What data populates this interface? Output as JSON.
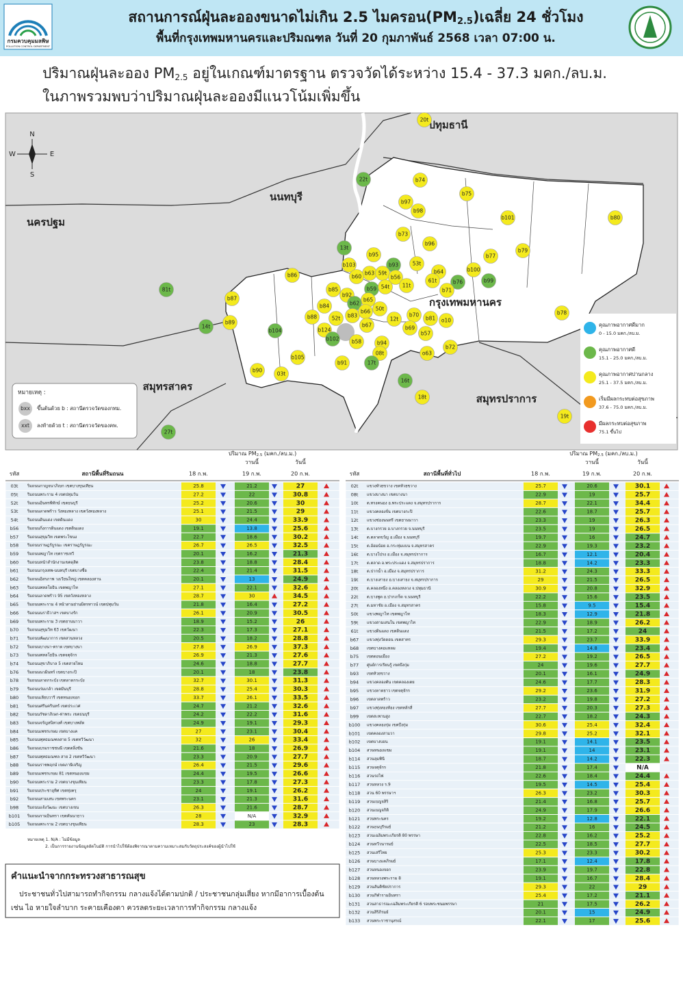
{
  "header": {
    "logo_name": "กรมควบคุมมลพิษ",
    "logo_sub": "POLLUTION CONTROL DEPARTMENT",
    "title_a": "สถานการณ์ฝุ่นละอองขนาดไม่เกิน 2.5 ไมครอน(PM",
    "title_sub": "2.5",
    "title_b": ")เฉลี่ย 24 ชั่วโมง",
    "subtitle": "พื้นที่กรุงเทพมหานครและปริมณฑล วันที่ 20 กุมภาพันธ์ 2568 เวลา 07:00 น."
  },
  "summary": {
    "line1_a": "ปริมาณฝุ่นละออง PM",
    "line1_sub": "2.5",
    "line1_b": " อยู่ในเกณฑ์มาตรฐาน ตรวจวัดได้ระหว่าง 15.4 - 37.3 มคก./ลบ.ม.",
    "line2": "ในภาพรวมพบว่าปริมาณฝุ่นละอองมีแนวโน้มเพิ่มขึ้น"
  },
  "map": {
    "compass": [
      "N",
      "E",
      "S",
      "W"
    ],
    "provinces": [
      "ปทุมธานี",
      "นนทบุรี",
      "นครปฐม",
      "กรุงเทพมหานคร",
      "สมุทรสาคร",
      "สมุทรปราการ"
    ],
    "stations": [
      {
        "label": "20t",
        "level": 2
      },
      {
        "label": "22t",
        "level": 1
      },
      {
        "label": "b74",
        "level": 2
      },
      {
        "label": "b75",
        "level": 2
      },
      {
        "label": "b97",
        "level": 2
      },
      {
        "label": "b98",
        "level": 2
      },
      {
        "label": "b101",
        "level": 2
      },
      {
        "label": "b80",
        "level": 2
      },
      {
        "label": "b73",
        "level": 2
      },
      {
        "label": "13t",
        "level": 1
      },
      {
        "label": "b96",
        "level": 2
      },
      {
        "label": "b95",
        "level": 2
      },
      {
        "label": "b77",
        "level": 2
      },
      {
        "label": "b79",
        "level": 2
      },
      {
        "label": "b93",
        "level": 1
      },
      {
        "label": "53t",
        "level": 2
      },
      {
        "label": "b103",
        "level": 2
      },
      {
        "label": "b100",
        "level": 2
      },
      {
        "label": "b63",
        "level": 2
      },
      {
        "label": "59t",
        "level": 2
      },
      {
        "label": "b56",
        "level": 2
      },
      {
        "label": "b64",
        "level": 2
      },
      {
        "label": "b86",
        "level": 2
      },
      {
        "label": "b60",
        "level": 2
      },
      {
        "label": "61t",
        "level": 2
      },
      {
        "label": "b76",
        "level": 1
      },
      {
        "label": "b99",
        "level": 1
      },
      {
        "label": "b85",
        "level": 2
      },
      {
        "label": "b59",
        "level": 1
      },
      {
        "label": "54t",
        "level": 2
      },
      {
        "label": "11t",
        "level": 2
      },
      {
        "label": "b71",
        "level": 2
      },
      {
        "label": "81t",
        "level": 1
      },
      {
        "label": "b92",
        "level": 2
      },
      {
        "label": "b87",
        "level": 2
      },
      {
        "label": "b65",
        "level": 2
      },
      {
        "label": "b62",
        "level": 1
      },
      {
        "label": "b84",
        "level": 2
      },
      {
        "label": "50t",
        "level": 2
      },
      {
        "label": "b89",
        "level": 2
      },
      {
        "label": "b83",
        "level": 2
      },
      {
        "label": "b88",
        "level": 2
      },
      {
        "label": "52t",
        "level": 2
      },
      {
        "label": "b70",
        "level": 2
      },
      {
        "label": "12t",
        "level": 2
      },
      {
        "label": "b81",
        "level": 2
      },
      {
        "label": "o10",
        "level": 2
      },
      {
        "label": "b78",
        "level": 2
      },
      {
        "label": "b66",
        "level": 2
      },
      {
        "label": "b67",
        "level": 2
      },
      {
        "label": "14t",
        "level": 1
      },
      {
        "label": "b69",
        "level": 2
      },
      {
        "label": "b124",
        "level": 2
      },
      {
        "label": "b57",
        "level": 2
      },
      {
        "label": "b104",
        "level": 1
      },
      {
        "label": "b102",
        "level": 1
      },
      {
        "label": "b58",
        "level": 2
      },
      {
        "label": "b94",
        "level": 2
      },
      {
        "label": "b72",
        "level": 2
      },
      {
        "label": "b105",
        "level": 2
      },
      {
        "label": "08t",
        "level": 2
      },
      {
        "label": "o63",
        "level": 2
      },
      {
        "label": "b91",
        "level": 2
      },
      {
        "label": "17t",
        "level": 1
      },
      {
        "label": "b90",
        "level": 2
      },
      {
        "label": "03t",
        "level": 2
      },
      {
        "label": "16t",
        "level": 1
      },
      {
        "label": "18t",
        "level": 2
      },
      {
        "label": "19t",
        "level": 2
      },
      {
        "label": "27t",
        "level": 1
      }
    ],
    "note": {
      "title": "หมายเหตุ :",
      "items": [
        {
          "badge": "bxx",
          "text": "ขึ้นต้นด้วย b : สถานีตรวจวัดของกทม."
        },
        {
          "badge": "xxt",
          "text": "ลงท้ายด้วย t : สถานีตรวจวัดของคพ."
        }
      ]
    },
    "legend": [
      {
        "title": "คุณภาพอากาศดีมาก",
        "range": "0 - 15.0 มคก./ลบ.ม.",
        "color": "#2fb4e9"
      },
      {
        "title": "คุณภาพอากาศดี",
        "range": "15.1 - 25.0 มคก./ลบ.ม.",
        "color": "#6cb84a"
      },
      {
        "title": "คุณภาพอากาศปานกลาง",
        "range": "25.1 - 37.5 มคก./ลบ.ม.",
        "color": "#f4ea1d"
      },
      {
        "title": "เริ่มมีผลกระทบต่อสุขภาพ",
        "range": "37.6 - 75.0 มคก./ลบ.ม.",
        "color": "#f29a1f"
      },
      {
        "title": "มีผลกระทบต่อสุขภาพ",
        "range": "75.1 ขึ้นไป",
        "color": "#e8302e"
      }
    ]
  },
  "tables": [
    {
      "unit_a": "ปริมาณ PM",
      "unit_sub": "2.5",
      "unit_b": " (มคก./ลบ.ม.)",
      "yesterday": "วานนี้",
      "today": "วันนี้",
      "columns": [
        "รหัส",
        "สถานีพื้นที่ริมถนน",
        "18 ก.พ.",
        "19 ก.พ.",
        "20 ก.พ."
      ],
      "rows": [
        [
          "03t",
          "ริมถนนกาญจนาภิเษก เขตบางขุนเทียน",
          25.8,
          21.2,
          27.0
        ],
        [
          "05t",
          "ริมถนนพระราม 4 เขตปทุมวัน",
          27.2,
          22.0,
          30.8
        ],
        [
          "52t",
          "ริมถนนอินทรพิทักษ์ เขตธนบุรี",
          25.2,
          20.6,
          30.0
        ],
        [
          "53t",
          "ริมถนนลาดพร้าว วังทองหลาง เขตวังทองหลาง",
          25.1,
          21.5,
          29.0
        ],
        [
          "54t",
          "ริมถนนดินแดง เขตดินแดง",
          30.0,
          24.4,
          33.9
        ],
        [
          "b56",
          "ริมถนนกิ่งการดินแดง เขตดินแดง",
          19.1,
          13.8,
          25.6
        ],
        [
          "b57",
          "ริมถนนสุขุมวิท เขตพระโขนง",
          22.7,
          18.6,
          30.2
        ],
        [
          "b58",
          "ริมถนนราษฎร์บูรณะ เขตราษฎร์บูรณะ",
          26.7,
          26.5,
          32.5
        ],
        [
          "b59",
          "ริมถนนพญาไท เขตราชเทวี",
          20.1,
          16.2,
          21.3
        ],
        [
          "b60",
          "ริมถนนหน้าสำนักงานเขตดุสิต",
          23.8,
          18.8,
          28.4
        ],
        [
          "b61",
          "ริมถนนกรุงเทพ-นนทบุรี เขตบางซื่อ",
          22.4,
          21.4,
          31.5
        ],
        [
          "b62",
          "ริมถนนอิสรภาพ วงเวียนใหญ่ เขตคลองสาน",
          20.1,
          13.0,
          24.9
        ],
        [
          "b63",
          "ริมถนนพหลโยธิน เขตพญาไท",
          27.1,
          22.1,
          32.6
        ],
        [
          "b64",
          "ริมถนนลาดพร้าว 95 เขตวังทองหลาง",
          28.7,
          30.0,
          34.5
        ],
        [
          "b65",
          "ริมถนนพระราม 4 หน้าสามย่านมิตรทาวน์ เขตปทุมวัน",
          21.8,
          16.4,
          27.2
        ],
        [
          "b66",
          "ริมถนนนราธิวาสฯ เขตบางรัก",
          26.1,
          20.9,
          30.5
        ],
        [
          "b69",
          "ริมถนนพระราม 3 เขตยานนาวา",
          18.9,
          15.2,
          26.0
        ],
        [
          "b70",
          "ริมถนนสุขุมวิท 63 เขตวัฒนา",
          22.3,
          17.3,
          27.1
        ],
        [
          "b71",
          "ริมถนนพัฒนาการ เขตสวนหลวง",
          20.5,
          18.2,
          28.8
        ],
        [
          "b72",
          "ริมถนนบางนา-ตราด เขตบางนา",
          27.8,
          26.9,
          37.3
        ],
        [
          "b73",
          "ริมถนนพหลโยธิน เขตจตุจักร",
          26.9,
          21.3,
          27.6
        ],
        [
          "b74",
          "ริมถนนสุขาภิบาล 5 เขตสายไหม",
          24.6,
          18.8,
          27.7
        ],
        [
          "b76",
          "ริมถนนนวมินทร์ เขตบางกะปิ",
          20.1,
          18.0,
          23.8
        ],
        [
          "b78",
          "ริมถนนลาดกระบัง เขตลาดกระบัง",
          32.7,
          30.1,
          31.3
        ],
        [
          "b79",
          "ริมถนนร่มเกล้า เขตมีนบุรี",
          28.8,
          25.4,
          30.3
        ],
        [
          "b80",
          "ริมถนนเลียบวารี เขตหนองจอก",
          33.7,
          26.1,
          33.5
        ],
        [
          "b81",
          "ริมถนนศรีนครินทร์ เขตประเวศ",
          24.7,
          21.2,
          32.6
        ],
        [
          "b82",
          "ริมถนนรัชดาภิเษก-ท่าพระ เขตธนบุรี",
          24.2,
          22.2,
          31.6
        ],
        [
          "b83",
          "ริมถนนจรัญสนิทวงศ์ เขตบางพลัด",
          24.9,
          19.1,
          29.3
        ],
        [
          "b84",
          "ริมถนนเพชรเกษม เขตบางแค",
          27.0,
          23.1,
          30.4
        ],
        [
          "b85",
          "ริมถนนพุทธมณฑลสาย 5 เขตทวีวัฒนา",
          32.0,
          26.0,
          33.4
        ],
        [
          "b86",
          "ริมถนนบรมราชชนนี เขตตลิ่งชัน",
          21.6,
          18.0,
          26.9
        ],
        [
          "b87",
          "ริมถนนพุทธมณฑล สาย 2 เขตทวีวัฒนา",
          23.3,
          20.9,
          27.7
        ],
        [
          "b88",
          "ริมถนนราชพฤกษ์ เขตภาษีเจริญ",
          26.4,
          21.5,
          29.6
        ],
        [
          "b89",
          "ริมถนนเพชรเกษม 81 เขตหนองแขม",
          24.4,
          19.5,
          26.6
        ],
        [
          "b90",
          "ริมถนนพระราม 2 เขตบางขุนเทียน",
          23.3,
          17.8,
          27.3
        ],
        [
          "b91",
          "ริมถนนประชาอุทิศ เขตทุ่งครุ",
          24.0,
          19.1,
          26.2
        ],
        [
          "b92",
          "ริมถนนสามเสน เขตพระนคร",
          23.1,
          21.3,
          31.6
        ],
        [
          "b98",
          "ริมถนนแจ้งวัฒนะ เขตบางเขน",
          26.3,
          21.6,
          28.7
        ],
        [
          "b101",
          "ริมถนนรามอินทรา เขตคันนายาว",
          28.0,
          "N/A",
          32.9
        ],
        [
          "b105",
          "ริมถนนพระราม 2 เขตบางขุนเทียน",
          28.3,
          23.0,
          28.3
        ]
      ],
      "notes": [
        "หมายเหตุ 1. N/A : ไม่มีข้อมูล",
        "2. เป็นการรายงานข้อมูลอัตโนมัติ การนำไปใช้ต้องพิจารณาตามความเหมาะสมกับวัตถุประสงค์ของผู้นำไปใช้"
      ]
    },
    {
      "unit_a": "ปริมาณ PM",
      "unit_sub": "2.5",
      "unit_b": " (มคก./ลบ.ม.)",
      "yesterday": "วานนี้",
      "today": "วันนี้",
      "columns": [
        "รหัส",
        "สถานีพื้นที่ทั่วไป",
        "18 ก.พ.",
        "19 ก.พ.",
        "20 ก.พ."
      ],
      "rows": [
        [
          "02t",
          "แขวงห้วยขวาง เขตห้วยขวาง",
          25.7,
          20.6,
          30.1
        ],
        [
          "08t",
          "แขวงบางนา เขตบางนา",
          22.9,
          19.0,
          25.7
        ],
        [
          "10t",
          "ต.ทรงคนอง อ.พระประแดง จ.สมุทรปราการ",
          28.7,
          22.1,
          34.4
        ],
        [
          "11t",
          "แขวงคลองจั่น เขตบางกะปิ",
          22.6,
          18.7,
          25.7
        ],
        [
          "12t",
          "แขวงช่องนนทรี เขตยานนาวา",
          23.3,
          19.0,
          26.3
        ],
        [
          "13t",
          "ต.บางกรวย อ.บางกรวย จ.นนทบุรี",
          23.5,
          19.0,
          26.5
        ],
        [
          "14t",
          "ต.ตลาดขวัญ อ.เมือง จ.นนทบุรี",
          19.7,
          16.0,
          24.7
        ],
        [
          "15t",
          "ต.อ้อมน้อย อ.กระทุ่มแบน จ.สมุทรสาคร",
          22.9,
          19.3,
          23.2
        ],
        [
          "16t",
          "ต.บางโปรง อ.เมือง จ.สมุทรปราการ",
          16.7,
          12.1,
          20.4
        ],
        [
          "17t",
          "ต.ตลาด อ.พระประแดง จ.สมุทรปราการ",
          18.8,
          14.2,
          23.3
        ],
        [
          "18t",
          "ต.ปากน้ำ อ.เมือง จ.สมุทรปราการ",
          31.2,
          24.3,
          33.3
        ],
        [
          "19t",
          "ต.บางเสาธง อ.บางเสาธง จ.สมุทรปราการ",
          29.0,
          21.5,
          26.5
        ],
        [
          "20t",
          "ต.คลองหนึ่ง อ.คลองหลวง จ.ปทุมธานี",
          30.9,
          20.8,
          32.9
        ],
        [
          "22t",
          "ต.บางพูด อ.ปากเกร็ด จ.นนทบุรี",
          22.2,
          15.6,
          23.5
        ],
        [
          "27t",
          "ต.มหาชัย อ.เมือง จ.สมุทรสาคร",
          15.8,
          9.5,
          15.4
        ],
        [
          "50t",
          "แขวงพญาไท เขตพญาไท",
          18.3,
          12.9,
          21.8
        ],
        [
          "59t",
          "แขวงสามเสนใน เขตพญาไท",
          22.9,
          18.9,
          26.2
        ],
        [
          "61t",
          "แขวงดินแดง เขตดินแดง",
          21.5,
          17.2,
          24.0
        ],
        [
          "b67",
          "แขวงทุ่งวัดดอน เขตสาทร",
          29.3,
          23.7,
          33.9
        ],
        [
          "b68",
          "เขตบางคอแหลม",
          19.4,
          14.8,
          23.4
        ],
        [
          "b75",
          "เขตดอนเมือง",
          27.2,
          19.2,
          26.5
        ],
        [
          "b77",
          "ศูนย์การเรียนรู้ เขตบึงกุ่ม",
          24.0,
          19.6,
          27.7
        ],
        [
          "b93",
          "เขตห้วยขวาง",
          20.1,
          16.1,
          24.9
        ],
        [
          "b94",
          "แขวงคลองตัน เขตคลองเตย",
          24.6,
          17.7,
          28.3
        ],
        [
          "b95",
          "แขวงลาดยาว เขตจตุจักร",
          29.2,
          23.6,
          31.9
        ],
        [
          "b96",
          "เขตลาดพร้าว",
          23.2,
          19.8,
          27.2
        ],
        [
          "b97",
          "แขวงทุ่งสองห้อง เขตหลักสี่",
          27.7,
          20.3,
          27.3
        ],
        [
          "b99",
          "เขตสะพานสูง",
          22.7,
          18.2,
          24.3
        ],
        [
          "b100",
          "แขวงคลองกุ่ม เขตบึงกุ่ม",
          30.6,
          25.4,
          32.4
        ],
        [
          "b101",
          "เขตคลองสามวา",
          29.8,
          25.2,
          32.1
        ],
        [
          "b102",
          "เขตบางบอน",
          19.1,
          14.1,
          23.5
        ],
        [
          "b104",
          "สวนหนองแขม",
          19.1,
          14.0,
          23.1
        ],
        [
          "b114",
          "สวนลุมพินี",
          18.7,
          14.2,
          22.3
        ],
        [
          "b115",
          "สวนจตุจักร",
          21.8,
          17.4,
          "N/A"
        ],
        [
          "b116",
          "สวนรถไฟ",
          22.6,
          18.4,
          24.4
        ],
        [
          "b117",
          "สวนหลวง ร.9",
          19.5,
          14.5,
          25.4
        ],
        [
          "b118",
          "สวน 60 พรรษาฯ",
          26.3,
          23.2,
          30.3
        ],
        [
          "b119",
          "สวนเบญจสิริ",
          21.4,
          16.8,
          25.7
        ],
        [
          "b120",
          "สวนเบญจกิติ",
          24.9,
          17.9,
          26.6
        ],
        [
          "b121",
          "สวนพระนคร",
          19.2,
          12.8,
          22.1
        ],
        [
          "b122",
          "สวนธนบุรีรมย์",
          21.2,
          16.0,
          24.5
        ],
        [
          "b123",
          "สวนเฉลิมพระเกียรติ 80 พรรษา",
          22.8,
          16.2,
          25.2
        ],
        [
          "b124",
          "สวนทวีวนารมย์",
          22.5,
          18.5,
          27.7
        ],
        [
          "b125",
          "สวนเสรีไทย",
          25.3,
          23.3,
          30.2
        ],
        [
          "b126",
          "สวนบางแคภิรมย์",
          17.1,
          12.4,
          17.8
        ],
        [
          "b127",
          "สวนหนองจอก",
          23.9,
          19.7,
          22.8
        ],
        [
          "b128",
          "สวนหลวงพระราม 8",
          19.1,
          16.7,
          28.4
        ],
        [
          "b129",
          "สวนสันติชัยปราการ",
          29.3,
          22.0,
          29.0
        ],
        [
          "b130",
          "สวนกีฬารามอินทรา",
          25.4,
          17.2,
          21.1
        ],
        [
          "b131",
          "สวนสาธารณะเฉลิมพระเกียรติ 6 รอบพระชนมพรรษา",
          21.0,
          17.5,
          26.2
        ],
        [
          "b132",
          "สวนสิริภิรมย์",
          20.1,
          15.0,
          24.9
        ],
        [
          "b133",
          "สวนพระราชานุสรณ์",
          22.1,
          17.0,
          25.6
        ]
      ]
    }
  ],
  "advice": {
    "title": "คำแนะนำจากกระทรวงสาธารณสุข",
    "line1": "ประชาชนทั่วไปสามารถทำกิจกรรม กลางแจ้งได้ตามปกติ / ประชาชนกลุ่มเสี่ยง หากมีอาการเบื้องต้น",
    "line2": "เช่น ไอ หายใจลำบาก ระคายเคืองตา ควรลดระยะเวลาการทำกิจกรรม กลางแจ้ง"
  }
}
